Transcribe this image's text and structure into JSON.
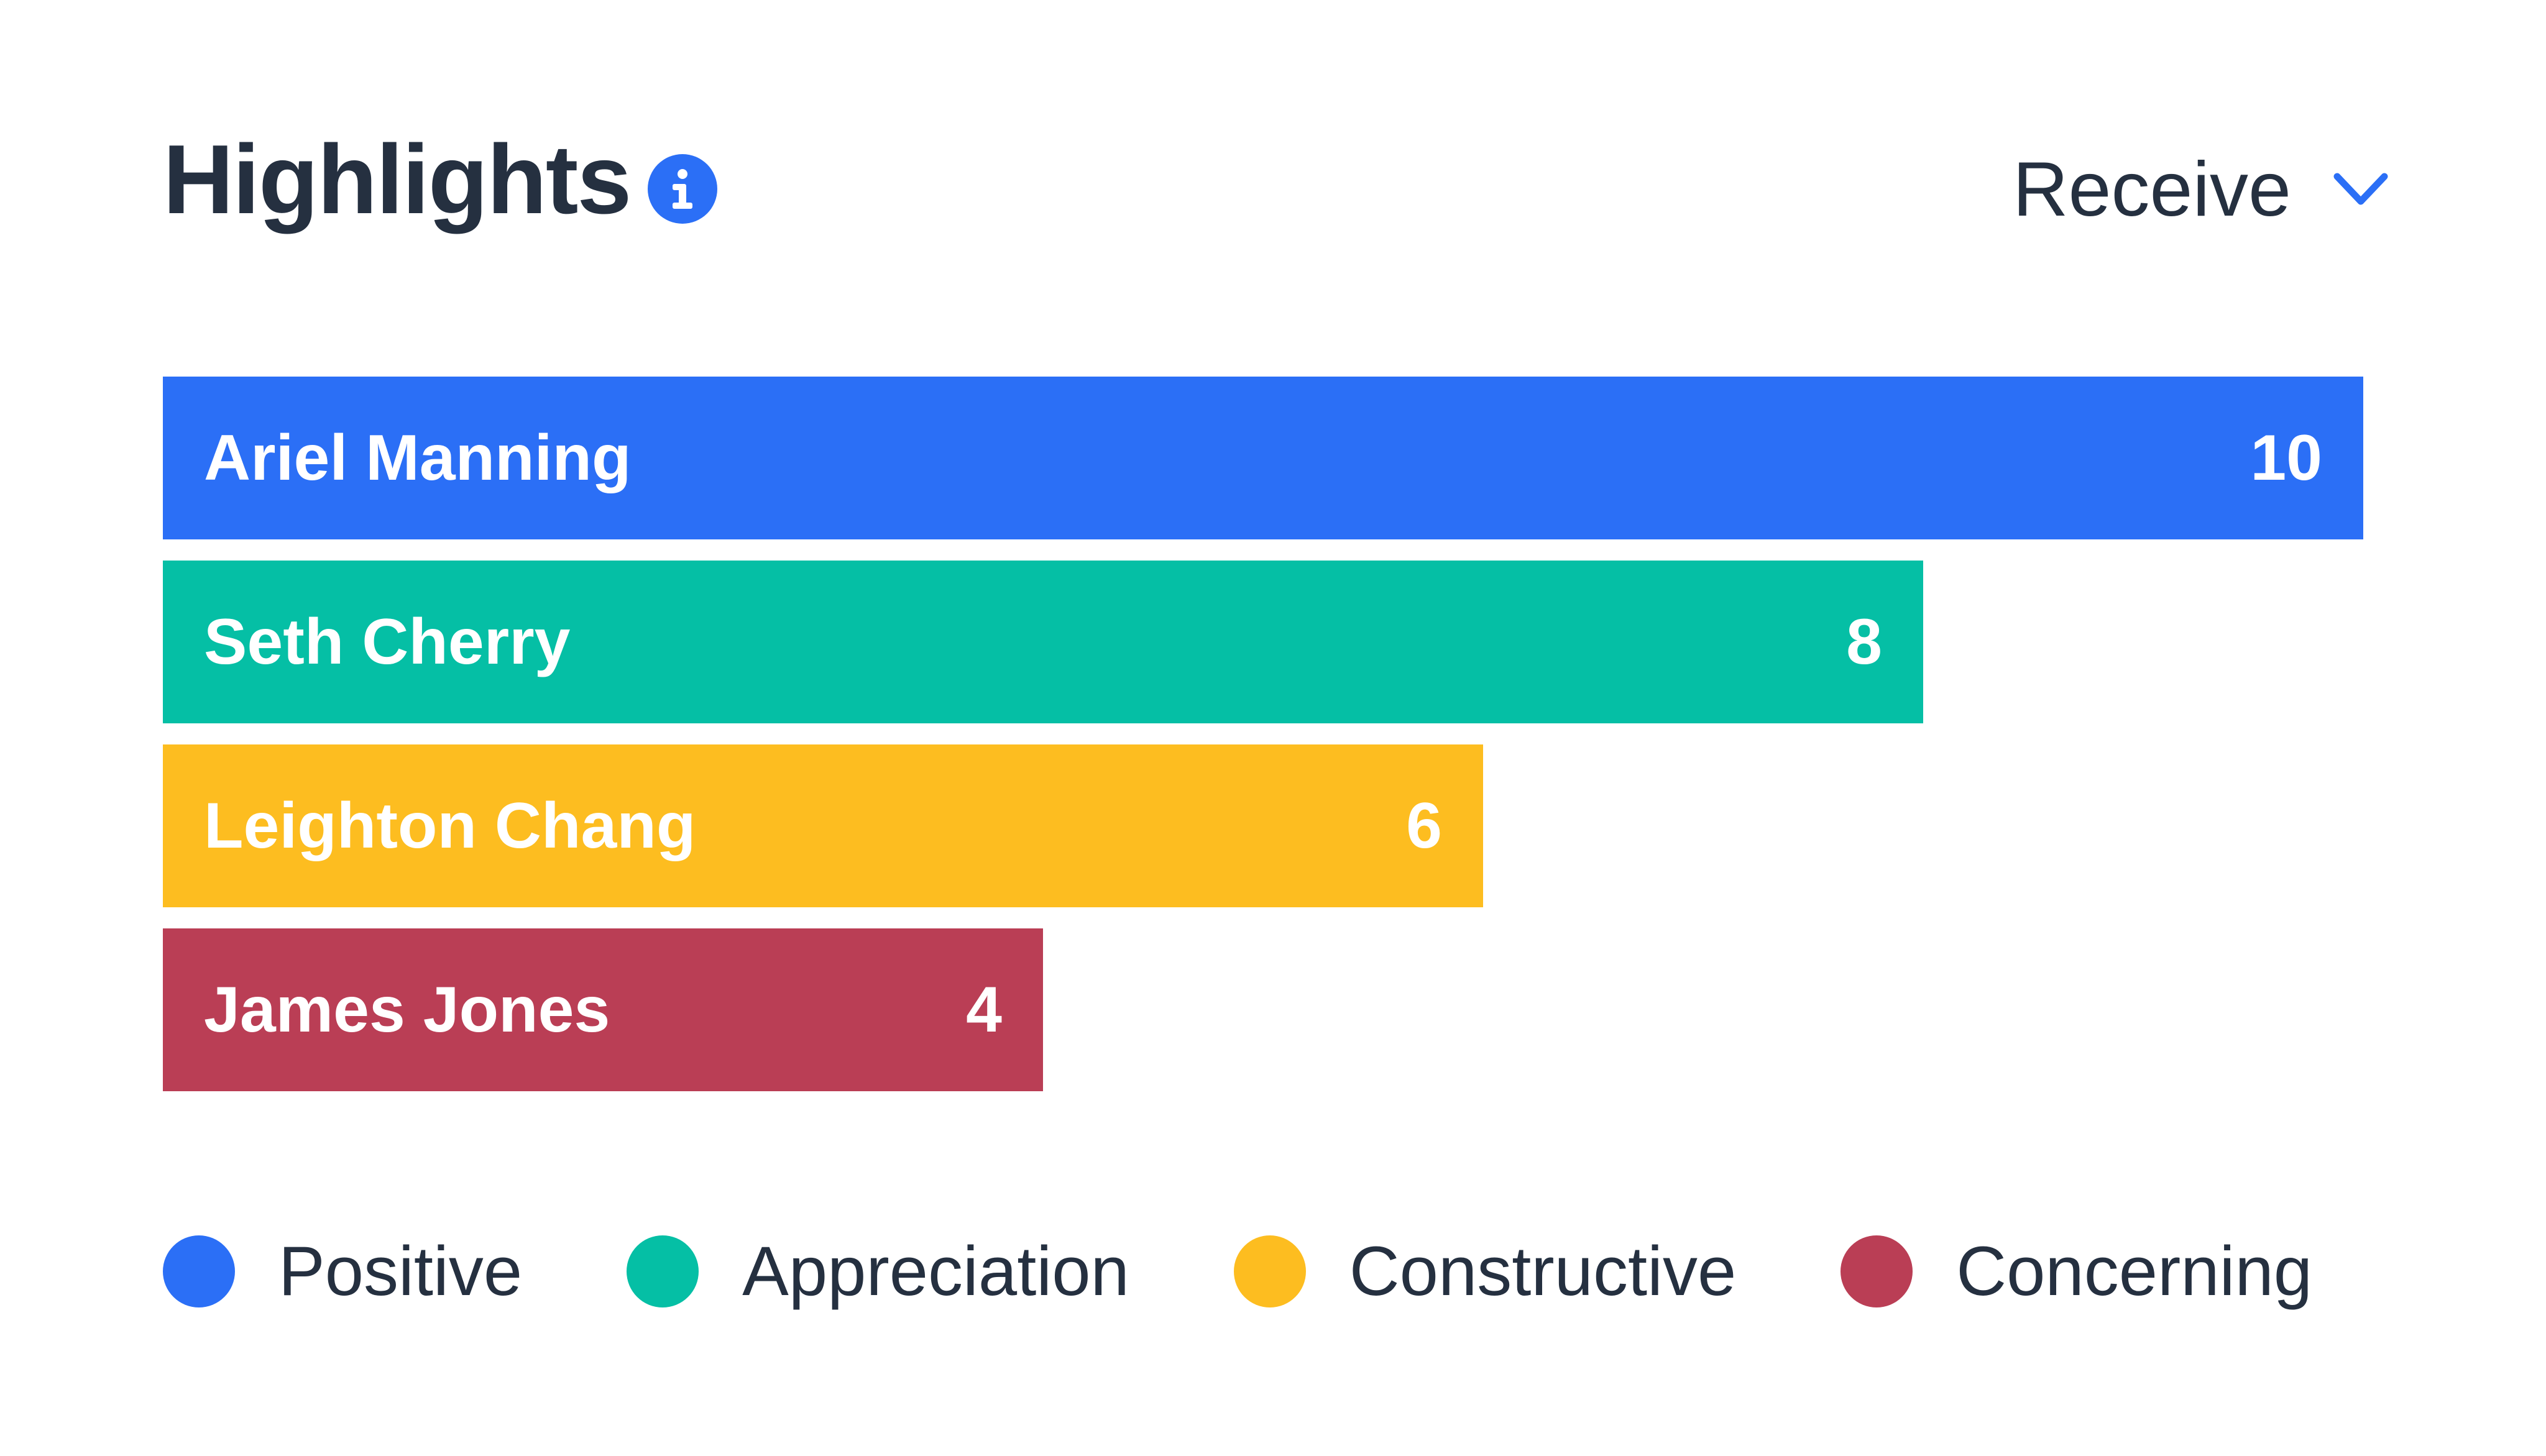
{
  "header": {
    "title": "Highlights",
    "info_icon": "info-icon",
    "selector_label": "Receive",
    "selector_icon": "chevron-down-icon"
  },
  "colors": {
    "text": "#253040",
    "accent": "#2B6FF6",
    "positive": "#2B6FF6",
    "appreciation": "#05BFA5",
    "constructive": "#FDBD20",
    "concerning": "#BA3E55"
  },
  "chart_data": {
    "type": "bar",
    "orientation": "horizontal",
    "categories": [
      "Ariel Manning",
      "Seth Cherry",
      "Leighton Chang",
      "James Jones"
    ],
    "values": [
      10,
      8,
      6,
      4
    ],
    "bar_colors": [
      "#2B6FF6",
      "#05BFA5",
      "#FDBD20",
      "#BA3E55"
    ],
    "xlim": [
      0,
      10
    ],
    "grid": false,
    "legend": {
      "placement": "bottom",
      "entries": [
        {
          "label": "Positive",
          "color": "#2B6FF6"
        },
        {
          "label": "Appreciation",
          "color": "#05BFA5"
        },
        {
          "label": "Constructive",
          "color": "#FDBD20"
        },
        {
          "label": "Concerning",
          "color": "#BA3E55"
        }
      ]
    }
  }
}
